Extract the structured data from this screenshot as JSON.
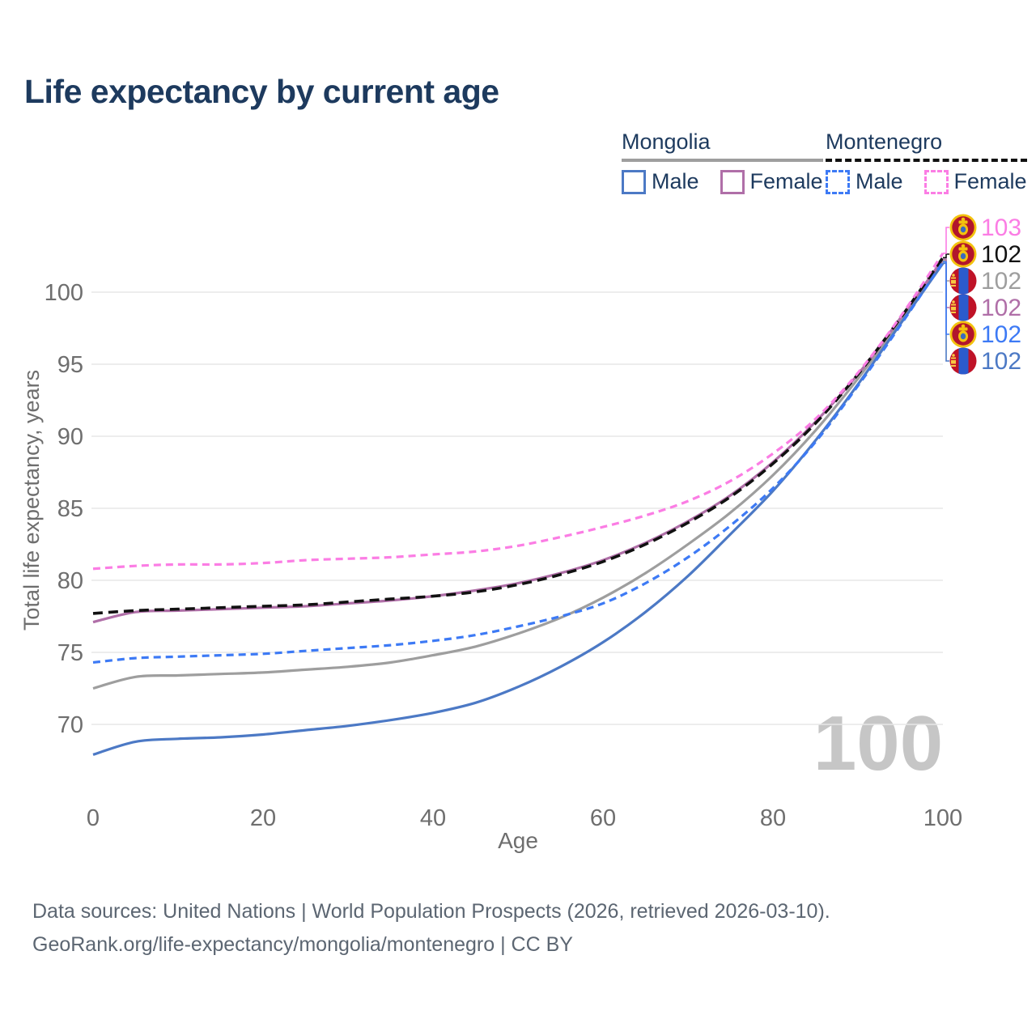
{
  "title": "Life expectancy by current age",
  "legend": {
    "groups": [
      {
        "country": "Mongolia",
        "line_style": "solid",
        "underline_color": "#9e9e9e",
        "items": [
          {
            "label": "Male",
            "color": "#4c79c5",
            "dashed": false
          },
          {
            "label": "Female",
            "color": "#b06fa8",
            "dashed": false
          }
        ]
      },
      {
        "country": "Montenegro",
        "line_style": "dashed",
        "underline_color": "#111111",
        "items": [
          {
            "label": "Male",
            "color": "#3d7af5",
            "dashed": true
          },
          {
            "label": "Female",
            "color": "#fb7de4",
            "dashed": true
          }
        ]
      }
    ]
  },
  "chart_data": {
    "type": "line",
    "title": "Life expectancy by current age",
    "xlabel": "Age",
    "ylabel": "Total life expectancy, years",
    "xlim": [
      0,
      100
    ],
    "ylim": [
      70,
      100
    ],
    "xticks": [
      0,
      20,
      40,
      60,
      80,
      100
    ],
    "yticks": [
      70,
      75,
      80,
      85,
      90,
      95,
      100
    ],
    "grid": "horizontal",
    "legend_position": "top-right",
    "watermark": "100",
    "x": [
      0,
      5,
      10,
      15,
      20,
      25,
      30,
      35,
      40,
      45,
      50,
      55,
      60,
      65,
      70,
      75,
      80,
      85,
      90,
      95,
      100
    ],
    "series": [
      {
        "name": "Mongolia",
        "sex": "both",
        "country": "mongolia",
        "color": "#9e9e9e",
        "dash": null,
        "width": 3.2,
        "label_row": 2,
        "values": [
          72.5,
          73.3,
          73.4,
          73.5,
          73.6,
          73.8,
          74.0,
          74.3,
          74.8,
          75.4,
          76.3,
          77.4,
          78.8,
          80.5,
          82.5,
          84.7,
          87.3,
          90.4,
          94.0,
          98.0,
          102.2
        ]
      },
      {
        "name": "Mongolia Female",
        "sex": "female",
        "country": "mongolia",
        "color": "#b06fa8",
        "dash": null,
        "width": 3.2,
        "label_row": 3,
        "values": [
          77.1,
          77.8,
          77.9,
          78.0,
          78.1,
          78.2,
          78.4,
          78.6,
          78.9,
          79.3,
          79.8,
          80.5,
          81.4,
          82.6,
          84.1,
          85.9,
          88.2,
          91.0,
          94.3,
          98.2,
          102.3
        ]
      },
      {
        "name": "Mongolia Male",
        "sex": "male",
        "country": "mongolia",
        "color": "#4c79c5",
        "dash": null,
        "width": 3.2,
        "label_row": 5,
        "values": [
          67.9,
          68.8,
          69.0,
          69.1,
          69.3,
          69.6,
          69.9,
          70.3,
          70.8,
          71.5,
          72.6,
          74.0,
          75.7,
          77.8,
          80.3,
          83.2,
          86.2,
          89.7,
          93.6,
          97.8,
          102.0
        ]
      },
      {
        "name": "Montenegro",
        "sex": "both",
        "country": "montenegro",
        "color": "#111111",
        "dash": "12 7",
        "width": 3.6,
        "label_row": 1,
        "values": [
          77.7,
          77.9,
          78.0,
          78.1,
          78.2,
          78.3,
          78.5,
          78.7,
          78.9,
          79.2,
          79.7,
          80.4,
          81.3,
          82.5,
          84.0,
          85.8,
          88.1,
          90.9,
          94.3,
          98.2,
          102.4
        ]
      },
      {
        "name": "Montenegro Male",
        "sex": "male",
        "country": "montenegro",
        "color": "#3d7af5",
        "dash": "9 6",
        "width": 3.2,
        "label_row": 4,
        "values": [
          74.3,
          74.6,
          74.7,
          74.8,
          74.9,
          75.1,
          75.3,
          75.5,
          75.8,
          76.2,
          76.8,
          77.5,
          78.4,
          79.8,
          81.6,
          83.8,
          86.4,
          89.6,
          93.5,
          97.7,
          102.1
        ]
      },
      {
        "name": "Montenegro Female",
        "sex": "female",
        "country": "montenegro",
        "color": "#fb7de4",
        "dash": "9 6",
        "width": 3.2,
        "label_row": 0,
        "values": [
          80.8,
          81.0,
          81.1,
          81.1,
          81.2,
          81.4,
          81.5,
          81.6,
          81.8,
          82.0,
          82.4,
          83.0,
          83.7,
          84.5,
          85.5,
          86.9,
          88.8,
          91.2,
          94.4,
          98.3,
          102.7
        ]
      }
    ],
    "end_labels": [
      {
        "value": "103",
        "color": "#fb7de4",
        "flag": "montenegro",
        "series": "Montenegro Female"
      },
      {
        "value": "102",
        "color": "#111111",
        "flag": "montenegro",
        "series": "Montenegro"
      },
      {
        "value": "102",
        "color": "#9e9e9e",
        "flag": "mongolia",
        "series": "Mongolia"
      },
      {
        "value": "102",
        "color": "#b06fa8",
        "flag": "mongolia",
        "series": "Mongolia Female"
      },
      {
        "value": "102",
        "color": "#3d7af5",
        "flag": "montenegro",
        "series": "Montenegro Male"
      },
      {
        "value": "102",
        "color": "#4c79c5",
        "flag": "mongolia",
        "series": "Mongolia Male"
      }
    ]
  },
  "flag_colors": {
    "montenegro": {
      "ring": "#f3c20e",
      "field": "#b2152c",
      "emblem_gold": "#f3c20e",
      "emblem_blue": "#3a6abf"
    },
    "mongolia": {
      "red": "#bf1227",
      "blue": "#2b5bcd",
      "soyombo": "#f7c843"
    }
  },
  "style_colors": {
    "title": "#1d3a5e",
    "ticks": "#6e6e6e",
    "gridline": "#e7e7e7",
    "watermark": "#c6c6c6",
    "footer": "#5c6672"
  },
  "footer": {
    "line1": "Data sources: United Nations | World Population Prospects (2026, retrieved 2026-03-10).",
    "line2": "GeoRank.org/life-expectancy/mongolia/montenegro | CC BY"
  }
}
